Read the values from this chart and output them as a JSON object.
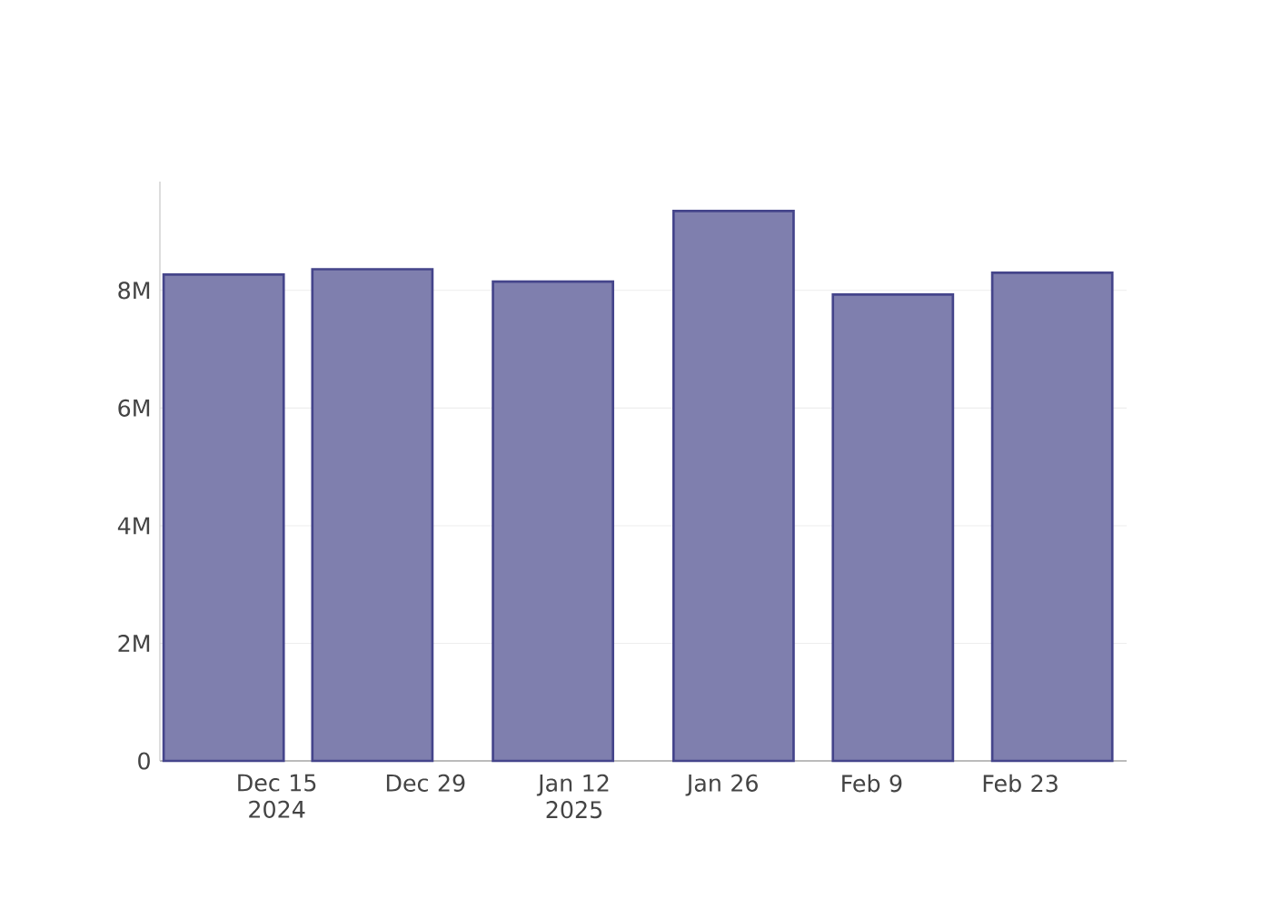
{
  "chart_data": {
    "type": "bar",
    "x": [
      "2024-12-10",
      "2024-12-24",
      "2025-01-10",
      "2025-01-27",
      "2025-02-11",
      "2025-02-26"
    ],
    "values": [
      8270000,
      8360000,
      8150000,
      9350000,
      7930000,
      8300000
    ],
    "color": "#7f7fae",
    "xlim": [
      "2024-12-04",
      "2025-03-05"
    ],
    "xticks": [
      {
        "value": "2024-12-15",
        "label": "Dec 15 2024"
      },
      {
        "value": "2024-12-29",
        "label": "Dec 29"
      },
      {
        "value": "2025-01-12",
        "label": "Jan 12 2025"
      },
      {
        "value": "2025-01-26",
        "label": "Jan 26"
      },
      {
        "value": "2025-02-09",
        "label": "Feb 9"
      },
      {
        "value": "2025-02-23",
        "label": "Feb 23"
      }
    ],
    "yticks": [
      0,
      {
        "value": 2000000,
        "label": "2M"
      },
      {
        "value": 4000000,
        "label": "4M"
      },
      {
        "value": 6000000,
        "label": "6M"
      },
      {
        "value": 8000000,
        "label": "8M"
      }
    ],
    "ylim": [
      0,
      9850000
    ],
    "grid": "y"
  }
}
